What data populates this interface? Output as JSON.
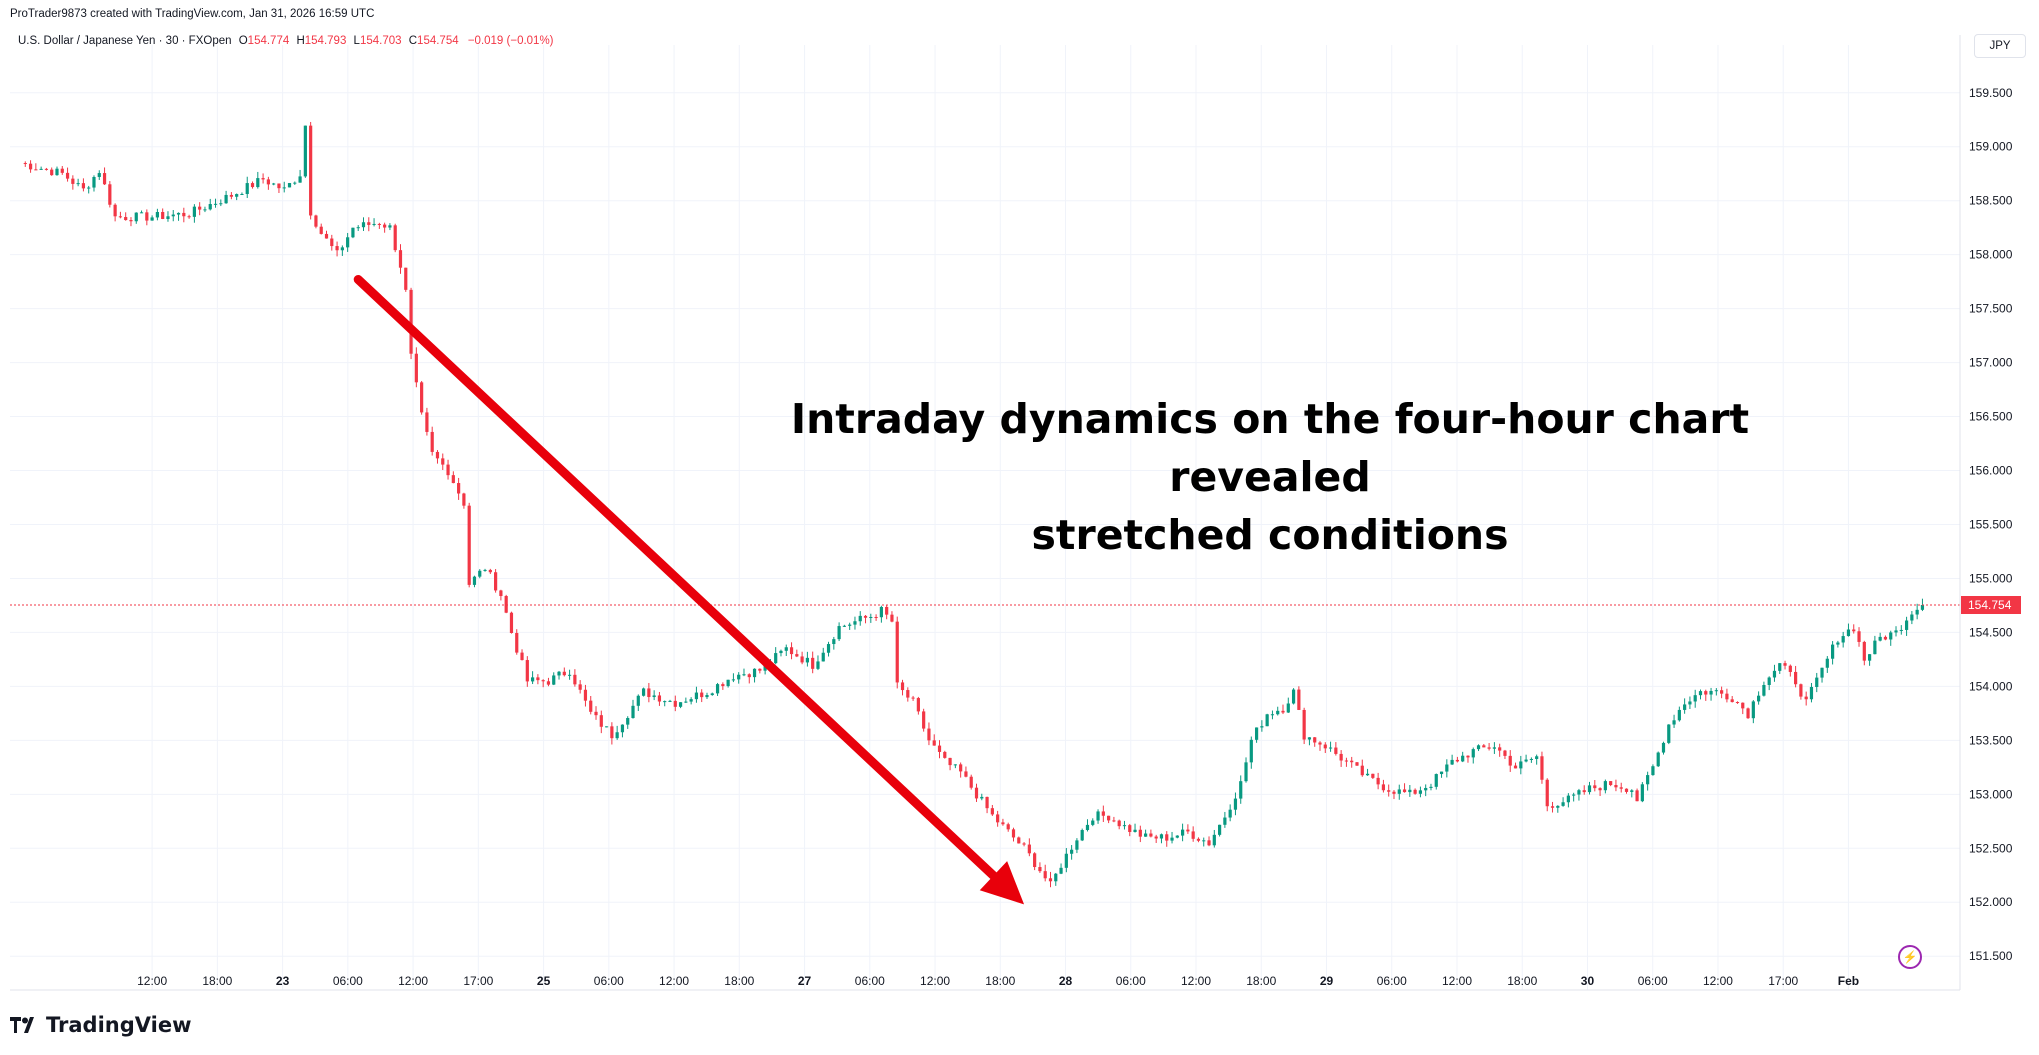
{
  "header": {
    "credit": "ProTrader9873 created with TradingView.com, Jan 31, 2026 16:59 UTC"
  },
  "legend": {
    "symbol": "U.S. Dollar / Japanese Yen · 30 · FXOpen",
    "o_label": "O",
    "o_value": "154.774",
    "h_label": "H",
    "h_value": "154.793",
    "l_label": "L",
    "l_value": "154.703",
    "c_label": "C",
    "c_value": "154.754",
    "change": "−0.019 (−0.01%)"
  },
  "currency_badge": "JPY",
  "annotation": {
    "line1": "Intraday dynamics on the four-hour chart revealed",
    "line2": "stretched conditions"
  },
  "brand": {
    "name": "TradingView"
  },
  "colors": {
    "up": "#089981",
    "down": "#f23645",
    "arrow": "#e8000b",
    "grid": "#f0f3fa",
    "price_line": "#f23645"
  },
  "chart_data": {
    "type": "candlestick",
    "symbol": "USD/JPY",
    "timeframe": "30",
    "ylim": [
      151.4,
      159.85
    ],
    "y_ticks": [
      "159.500",
      "159.000",
      "158.500",
      "158.000",
      "157.500",
      "157.000",
      "156.500",
      "156.000",
      "155.500",
      "155.000",
      "154.500",
      "154.000",
      "153.500",
      "153.000",
      "152.500",
      "152.000",
      "151.500"
    ],
    "x_ticks": [
      "12:00",
      "18:00",
      "23",
      "06:00",
      "12:00",
      "17:00",
      "25",
      "06:00",
      "12:00",
      "18:00",
      "27",
      "06:00",
      "12:00",
      "18:00",
      "28",
      "06:00",
      "12:00",
      "18:00",
      "29",
      "06:00",
      "12:00",
      "18:00",
      "30",
      "06:00",
      "12:00",
      "17:00",
      "Feb"
    ],
    "bold_ticks": [
      "23",
      "25",
      "27",
      "28",
      "29",
      "30",
      "Feb"
    ],
    "last_price": "154.754",
    "waypoints": [
      [
        0,
        158.85
      ],
      [
        8,
        158.75
      ],
      [
        12,
        158.6
      ],
      [
        15,
        158.78
      ],
      [
        18,
        158.35
      ],
      [
        25,
        158.35
      ],
      [
        32,
        158.38
      ],
      [
        40,
        158.55
      ],
      [
        46,
        158.7
      ],
      [
        50,
        158.6
      ],
      [
        53,
        158.75
      ],
      [
        54,
        159.2
      ],
      [
        55,
        158.4
      ],
      [
        57,
        158.2
      ],
      [
        60,
        158.0
      ],
      [
        63,
        158.25
      ],
      [
        68,
        158.3
      ],
      [
        70,
        158.25
      ],
      [
        72,
        157.9
      ],
      [
        73,
        157.65
      ],
      [
        74,
        157.05
      ],
      [
        76,
        156.5
      ],
      [
        78,
        156.15
      ],
      [
        81,
        156.0
      ],
      [
        84,
        155.7
      ],
      [
        85,
        154.95
      ],
      [
        88,
        155.1
      ],
      [
        91,
        154.85
      ],
      [
        93,
        154.5
      ],
      [
        96,
        154.05
      ],
      [
        100,
        154.05
      ],
      [
        104,
        154.15
      ],
      [
        108,
        153.75
      ],
      [
        112,
        153.55
      ],
      [
        118,
        153.95
      ],
      [
        124,
        153.85
      ],
      [
        130,
        153.95
      ],
      [
        135,
        154.1
      ],
      [
        140,
        154.15
      ],
      [
        145,
        154.35
      ],
      [
        150,
        154.2
      ],
      [
        155,
        154.55
      ],
      [
        161,
        154.65
      ],
      [
        163,
        154.7
      ],
      [
        165,
        154.6
      ],
      [
        166,
        154.0
      ],
      [
        169,
        153.85
      ],
      [
        172,
        153.5
      ],
      [
        175,
        153.3
      ],
      [
        178,
        153.2
      ],
      [
        181,
        153.0
      ],
      [
        184,
        152.8
      ],
      [
        187,
        152.65
      ],
      [
        190,
        152.5
      ],
      [
        193,
        152.3
      ],
      [
        195,
        152.15
      ],
      [
        197,
        152.35
      ],
      [
        200,
        152.6
      ],
      [
        203,
        152.8
      ],
      [
        206,
        152.8
      ],
      [
        209,
        152.7
      ],
      [
        213,
        152.6
      ],
      [
        217,
        152.6
      ],
      [
        221,
        152.65
      ],
      [
        225,
        152.55
      ],
      [
        228,
        152.8
      ],
      [
        231,
        153.1
      ],
      [
        233,
        153.5
      ],
      [
        236,
        153.75
      ],
      [
        239,
        153.8
      ],
      [
        241,
        153.95
      ],
      [
        243,
        153.55
      ],
      [
        247,
        153.45
      ],
      [
        251,
        153.3
      ],
      [
        255,
        153.15
      ],
      [
        259,
        153.05
      ],
      [
        263,
        153.0
      ],
      [
        267,
        153.1
      ],
      [
        271,
        153.3
      ],
      [
        275,
        153.4
      ],
      [
        279,
        153.45
      ],
      [
        283,
        153.25
      ],
      [
        287,
        153.35
      ],
      [
        289,
        152.9
      ],
      [
        293,
        152.95
      ],
      [
        297,
        153.05
      ],
      [
        301,
        153.1
      ],
      [
        305,
        153.05
      ],
      [
        306,
        152.95
      ],
      [
        309,
        153.25
      ],
      [
        312,
        153.65
      ],
      [
        315,
        153.85
      ],
      [
        318,
        153.95
      ],
      [
        321,
        153.95
      ],
      [
        324,
        153.9
      ],
      [
        327,
        153.75
      ],
      [
        330,
        154.05
      ],
      [
        333,
        154.2
      ],
      [
        336,
        154.05
      ],
      [
        338,
        153.85
      ],
      [
        341,
        154.15
      ],
      [
        344,
        154.45
      ],
      [
        347,
        154.55
      ],
      [
        349,
        154.25
      ],
      [
        352,
        154.45
      ],
      [
        355,
        154.5
      ],
      [
        358,
        154.7
      ],
      [
        360,
        154.75
      ]
    ],
    "arrow": {
      "from": [
        64,
        157.77
      ],
      "to": [
        190,
        151.98
      ]
    }
  }
}
